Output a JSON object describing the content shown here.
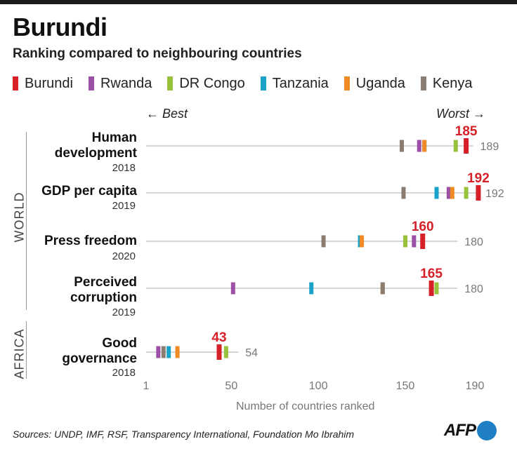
{
  "title": "Burundi",
  "subtitle": "Ranking compared to neighbouring countries",
  "legend": [
    {
      "name": "Burundi",
      "color": "#d62028"
    },
    {
      "name": "Rwanda",
      "color": "#9b4fa5"
    },
    {
      "name": "DR Congo",
      "color": "#98c23c"
    },
    {
      "name": "Tanzania",
      "color": "#1aa3c8"
    },
    {
      "name": "Uganda",
      "color": "#f08a24"
    },
    {
      "name": "Kenya",
      "color": "#8c7d72"
    }
  ],
  "direction": {
    "best": "← Best",
    "worst": "Worst →"
  },
  "groups": {
    "world": "WORLD",
    "africa": "AFRICA"
  },
  "x_axis_title": "Number of countries ranked",
  "source": "Sources: UNDP, IMF, RSF, Transparency International, Foundation Mo Ibrahim",
  "logo_text": "AFP",
  "indicators": [
    {
      "name": "Human\ndevelopment",
      "year": "2018"
    },
    {
      "name": "GDP per capita",
      "year": "2019"
    },
    {
      "name": "Press freedom",
      "year": "2020"
    },
    {
      "name": "Perceived\ncorruption",
      "year": "2019"
    },
    {
      "name": "Good\ngovernance",
      "year": "2018"
    }
  ],
  "chart_data": {
    "type": "scatter",
    "title": "Burundi",
    "subtitle": "Ranking compared to neighbouring countries",
    "xlabel": "Number of countries ranked",
    "xticks": [
      1,
      50,
      100,
      150,
      190
    ],
    "xlim": [
      1,
      190
    ],
    "countries": [
      "Burundi",
      "Rwanda",
      "DR Congo",
      "Tanzania",
      "Uganda",
      "Kenya"
    ],
    "rows": [
      {
        "indicator": "Human development",
        "year": "2018",
        "group": "WORLD",
        "total": 189,
        "ranks": {
          "Burundi": 185,
          "Rwanda": 158,
          "DR Congo": 179,
          "Tanzania": 161,
          "Uganda": 161,
          "Kenya": 148
        }
      },
      {
        "indicator": "GDP per capita",
        "year": "2019",
        "group": "WORLD",
        "total": 192,
        "ranks": {
          "Burundi": 192,
          "Rwanda": 175,
          "DR Congo": 185,
          "Tanzania": 168,
          "Uganda": 177,
          "Kenya": 149
        }
      },
      {
        "indicator": "Press freedom",
        "year": "2020",
        "group": "WORLD",
        "total": 180,
        "ranks": {
          "Burundi": 160,
          "Rwanda": 155,
          "DR Congo": 150,
          "Tanzania": 124,
          "Uganda": 125,
          "Kenya": 103
        }
      },
      {
        "indicator": "Perceived corruption",
        "year": "2019",
        "group": "WORLD",
        "total": 180,
        "ranks": {
          "Burundi": 165,
          "Rwanda": 51,
          "DR Congo": 168,
          "Tanzania": 96,
          "Uganda": 137,
          "Kenya": 137
        }
      },
      {
        "indicator": "Good governance",
        "year": "2018",
        "group": "AFRICA",
        "total": 54,
        "ranks": {
          "Burundi": 43,
          "Rwanda": 8,
          "DR Congo": 47,
          "Tanzania": 14,
          "Uganda": 19,
          "Kenya": 11
        }
      }
    ]
  }
}
